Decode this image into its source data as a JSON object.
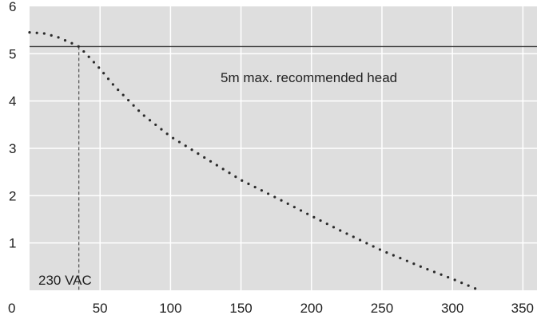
{
  "chart_data": {
    "type": "line",
    "title": "",
    "xlabel": "",
    "ylabel": "",
    "xlim": [
      0,
      360
    ],
    "ylim": [
      0,
      6
    ],
    "xticks": [
      0,
      50,
      100,
      150,
      200,
      250,
      300,
      350
    ],
    "yticks": [
      1,
      2,
      3,
      4,
      5,
      6
    ],
    "xtick_labels": [
      "0",
      "50",
      "100",
      "150",
      "200",
      "250",
      "300",
      "350"
    ],
    "ytick_labels": [
      "1",
      "2",
      "3",
      "4",
      "5",
      "6"
    ],
    "grid": true,
    "series": [
      {
        "name": "",
        "style": "dotted",
        "x": [
          0,
          10,
          20,
          30,
          35,
          40,
          50,
          60,
          80,
          100,
          120,
          150,
          180,
          200,
          220,
          250,
          280,
          300,
          320,
          330
        ],
        "y": [
          5.45,
          5.43,
          5.35,
          5.22,
          5.15,
          5.0,
          4.68,
          4.32,
          3.72,
          3.25,
          2.88,
          2.33,
          1.88,
          1.57,
          1.27,
          0.84,
          0.47,
          0.24,
          -0.01,
          -0.18
        ]
      }
    ],
    "reference_lines": [
      {
        "orientation": "horizontal",
        "value": 5.15,
        "style": "solid",
        "label": "5m max. recommended head"
      },
      {
        "orientation": "vertical",
        "value": 35,
        "style": "dashed",
        "label": "230 VAC"
      }
    ],
    "colors": {
      "background": "#dedede",
      "grid": "#ffffff",
      "curve": "#2a2a2a",
      "reference": "#333333",
      "text": "#222222"
    }
  }
}
